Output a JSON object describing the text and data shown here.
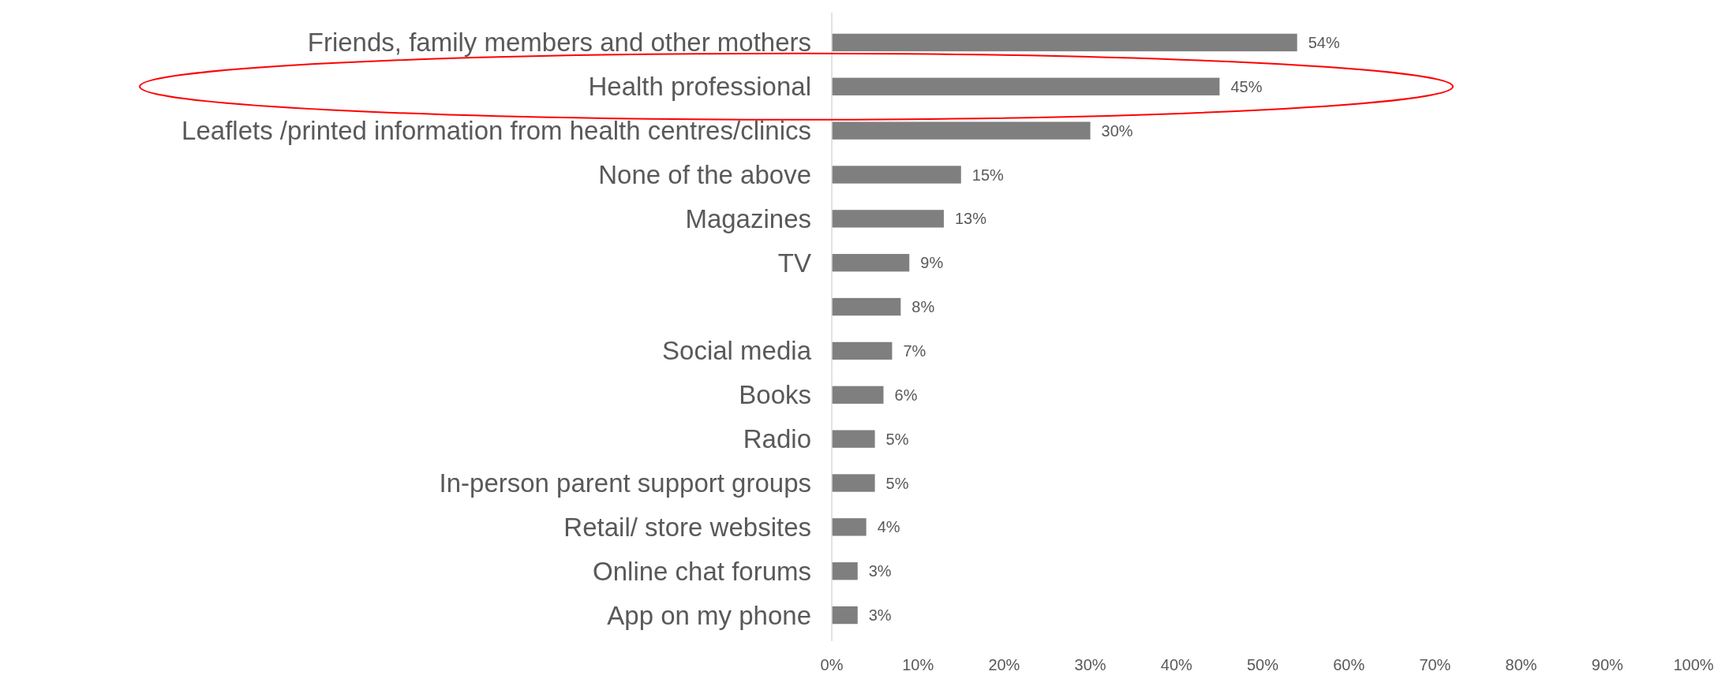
{
  "chart_data": {
    "type": "bar",
    "orientation": "horizontal",
    "categories": [
      "Friends, family members and other mothers",
      "Health professional",
      "Leaflets /printed information from health centres/clinics",
      "None of the above",
      "Magazines",
      "TV",
      null,
      "Social media",
      "Books",
      "Radio",
      "In-person parent support groups",
      "Retail/ store websites",
      "Online chat forums",
      "App on my phone"
    ],
    "values": [
      54,
      45,
      30,
      15,
      13,
      9,
      8,
      7,
      6,
      5,
      5,
      4,
      3,
      3
    ],
    "value_labels": [
      "54%",
      "45%",
      "30%",
      "15%",
      "13%",
      "9%",
      "8%",
      "7%",
      "6%",
      "5%",
      "5%",
      "4%",
      "3%",
      "3%"
    ],
    "color": "#7f7f7f",
    "xlim": [
      0,
      100
    ],
    "xticks": [
      {
        "value": 0,
        "label": "0%"
      },
      {
        "value": 10,
        "label": "10%"
      },
      {
        "value": 20,
        "label": "20%"
      },
      {
        "value": 30,
        "label": "30%"
      },
      {
        "value": 40,
        "label": "40%"
      },
      {
        "value": 50,
        "label": "50%"
      },
      {
        "value": 60,
        "label": "60%"
      },
      {
        "value": 70,
        "label": "70%"
      },
      {
        "value": 80,
        "label": "80%"
      },
      {
        "value": 90,
        "label": "90%"
      },
      {
        "value": 100,
        "label": "100%"
      }
    ],
    "grid": false
  }
}
